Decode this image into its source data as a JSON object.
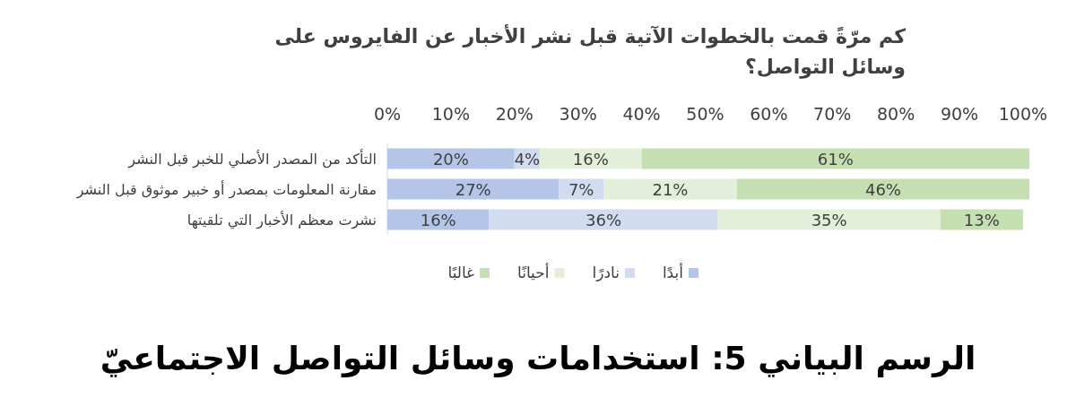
{
  "chart_data": {
    "type": "bar",
    "orientation": "horizontal",
    "stacked": true,
    "title": "كم مرّةً قمت بالخطوات الآتية قبل نشر الأخبار عن الفايروس على وسائل التواصل؟",
    "categories": [
      "التأكد من المصدر الأصلي للخبر قبل النشر",
      "مقارنة المعلومات بمصدر أو خبير موثوق قبل النشر",
      "نشرت معظم الأخبار التي تلقيتها"
    ],
    "series": [
      {
        "name": "أبدًا",
        "color": "#b4c5e7",
        "values": [
          20,
          27,
          16
        ],
        "value_labels": [
          "20%",
          "27%",
          "16%"
        ]
      },
      {
        "name": "نادرًا",
        "color": "#d2dcf0",
        "values": [
          4,
          7,
          36
        ],
        "value_labels": [
          "4%",
          "7%",
          "36%"
        ]
      },
      {
        "name": "أحيانًا",
        "color": "#e4efd9",
        "values": [
          16,
          21,
          35
        ],
        "value_labels": [
          "16%",
          "21%",
          "35%"
        ]
      },
      {
        "name": "غالبًا",
        "color": "#c6dfb2",
        "values": [
          61,
          46,
          13
        ],
        "value_labels": [
          "61%",
          "46%",
          "13%"
        ]
      }
    ],
    "xlim": [
      0,
      101
    ],
    "xticks": [
      {
        "value": 0,
        "label": "0%"
      },
      {
        "value": 10,
        "label": "10%"
      },
      {
        "value": 20,
        "label": "20%"
      },
      {
        "value": 30,
        "label": "30%"
      },
      {
        "value": 40,
        "label": "40%"
      },
      {
        "value": 50,
        "label": "50%"
      },
      {
        "value": 60,
        "label": "60%"
      },
      {
        "value": 70,
        "label": "70%"
      },
      {
        "value": 80,
        "label": "80%"
      },
      {
        "value": 90,
        "label": "90%"
      },
      {
        "value": 100,
        "label": "100%"
      }
    ],
    "legend": "bottom",
    "grid": false,
    "annotations": [
      "الرسم البياني 5: استخدامات وسائل التواصل الاجتماعيّ"
    ]
  }
}
